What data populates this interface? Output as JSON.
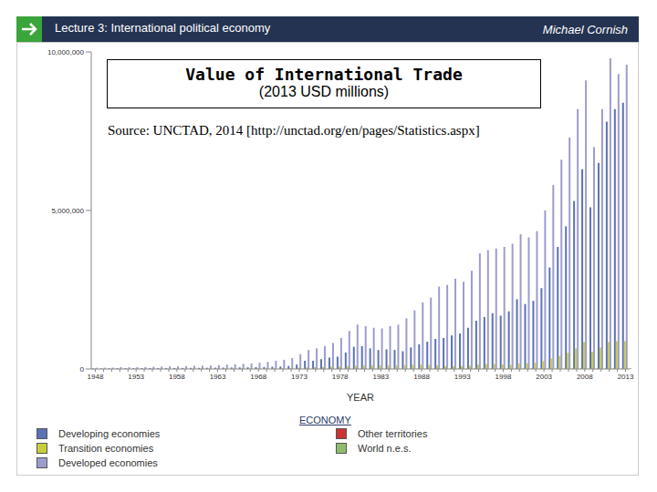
{
  "slide": {
    "header": "Lecture 3: International political economy",
    "author": "Michael Cornish",
    "source": "Source: UNCTAD, 2014 [http://unctad.org/en/pages/Statistics.aspx]"
  },
  "chart_data": {
    "type": "bar",
    "title": "Value of International Trade",
    "subtitle": "(2013 USD millions)",
    "x_label": "YEAR",
    "legend_title": "ECONOMY",
    "grid": false,
    "categories": [
      "1948",
      null,
      null,
      null,
      null,
      "1953",
      null,
      null,
      null,
      null,
      "1958",
      null,
      null,
      null,
      null,
      "1963",
      null,
      null,
      null,
      null,
      "1968",
      null,
      null,
      null,
      null,
      "1973",
      null,
      null,
      null,
      null,
      "1978",
      null,
      null,
      null,
      null,
      "1983",
      null,
      null,
      null,
      null,
      "1988",
      null,
      null,
      null,
      null,
      "1993",
      null,
      null,
      null,
      null,
      "1998",
      null,
      null,
      null,
      null,
      "2003",
      null,
      null,
      null,
      null,
      "2008",
      null,
      null,
      null,
      null,
      "2013"
    ],
    "ylim": [
      0,
      10000000
    ],
    "yticks": [
      0,
      {
        "value": 5000000,
        "label": "5,000,000"
      },
      {
        "value": 10000000,
        "label": "10,000,000"
      }
    ],
    "series": [
      {
        "name": "Developing economies",
        "color": "#5b73b5",
        "values": [
          20000,
          20000,
          22000,
          28000,
          26000,
          26000,
          27000,
          29000,
          31000,
          33000,
          32000,
          33000,
          35000,
          36000,
          38000,
          41000,
          45000,
          48000,
          51000,
          53000,
          58000,
          65000,
          72000,
          80000,
          95000,
          140000,
          260000,
          260000,
          310000,
          360000,
          390000,
          520000,
          700000,
          720000,
          650000,
          600000,
          620000,
          600000,
          560000,
          680000,
          780000,
          860000,
          950000,
          980000,
          1060000,
          1120000,
          1300000,
          1520000,
          1640000,
          1760000,
          1680000,
          1820000,
          2200000,
          2050000,
          2150000,
          2550000,
          3200000,
          3850000,
          4500000,
          5300000,
          6300000,
          5100000,
          6500000,
          7800000,
          8200000,
          8400000
        ]
      },
      {
        "name": "Transition economies",
        "color": "#c9cf3c",
        "values": [
          5000,
          5000,
          6000,
          7000,
          7000,
          8000,
          8000,
          9000,
          10000,
          11000,
          11000,
          12000,
          14000,
          15000,
          16000,
          17000,
          18000,
          19000,
          20000,
          22000,
          23000,
          25000,
          27000,
          29000,
          33000,
          42000,
          50000,
          60000,
          65000,
          72000,
          80000,
          92000,
          105000,
          108000,
          112000,
          115000,
          118000,
          120000,
          125000,
          130000,
          135000,
          130000,
          120000,
          95000,
          90000,
          95000,
          105000,
          140000,
          155000,
          160000,
          145000,
          130000,
          175000,
          180000,
          195000,
          250000,
          330000,
          410000,
          510000,
          650000,
          850000,
          540000,
          680000,
          850000,
          880000,
          880000
        ]
      },
      {
        "name": "Developed economies",
        "color": "#9c9ccf",
        "values": [
          40000,
          42000,
          45000,
          60000,
          58000,
          60000,
          63000,
          70000,
          78000,
          85000,
          82000,
          88000,
          100000,
          105000,
          112000,
          122000,
          138000,
          150000,
          165000,
          175000,
          195000,
          225000,
          260000,
          290000,
          345000,
          470000,
          600000,
          650000,
          720000,
          820000,
          980000,
          1200000,
          1400000,
          1350000,
          1300000,
          1280000,
          1350000,
          1400000,
          1600000,
          1850000,
          2100000,
          2250000,
          2600000,
          2650000,
          2850000,
          2750000,
          3100000,
          3650000,
          3750000,
          3800000,
          3850000,
          3950000,
          4250000,
          4150000,
          4350000,
          5000000,
          5800000,
          6600000,
          7300000,
          8200000,
          9100000,
          7000000,
          8200000,
          9800000,
          9300000,
          9600000
        ]
      },
      {
        "name": "Other territories",
        "color": "#cc3333",
        "values": [
          1000,
          1000,
          1000,
          1000,
          1000,
          1000,
          1000,
          1000,
          1000,
          1000,
          1000,
          1000,
          1000,
          1000,
          1000,
          1000,
          1000,
          1000,
          1000,
          1000,
          1000,
          1000,
          1000,
          1000,
          1000,
          1000,
          1000,
          1000,
          1000,
          1000,
          1000,
          1000,
          1000,
          1000,
          1000,
          1000,
          1000,
          1000,
          1000,
          1000,
          1000,
          1000,
          1000,
          1000,
          1000,
          1000,
          1000,
          1000,
          1000,
          1000,
          1000,
          1000,
          1000,
          1000,
          1000,
          1000,
          1000,
          1000,
          1000,
          1000,
          1000,
          1000,
          1000,
          1000,
          1000,
          1000
        ]
      },
      {
        "name": "World n.e.s.",
        "color": "#8fbc6f",
        "values": [
          3000,
          3000,
          3000,
          3000,
          3000,
          3000,
          3000,
          3000,
          3000,
          3000,
          3000,
          3000,
          3000,
          3000,
          3000,
          3000,
          3000,
          3000,
          3000,
          3000,
          3000,
          3000,
          10000,
          10000,
          10000,
          10000,
          10000,
          10000,
          10000,
          10000,
          10000,
          10000,
          10000,
          10000,
          10000,
          10000,
          10000,
          10000,
          10000,
          10000,
          10000,
          10000,
          30000,
          30000,
          30000,
          30000,
          30000,
          30000,
          30000,
          30000,
          30000,
          30000,
          30000,
          30000,
          30000,
          30000,
          30000,
          30000,
          30000,
          30000,
          30000,
          30000,
          30000,
          30000,
          30000,
          30000
        ]
      }
    ]
  }
}
